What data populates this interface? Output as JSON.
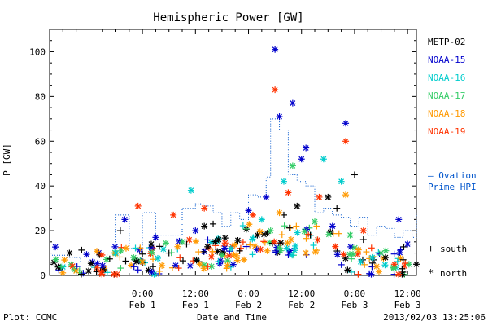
{
  "chart_data": {
    "type": "scatter",
    "title": "Hemispheric Power [GW]",
    "xlabel": "Date and Time",
    "ylabel": "P [GW]",
    "ylim": [
      0,
      110
    ],
    "xlim_hours": [
      -21,
      62
    ],
    "y_ticks": [
      0,
      20,
      40,
      60,
      80,
      100
    ],
    "x_ticks": [
      {
        "hour": 0,
        "time": "0:00",
        "date": "Feb 1"
      },
      {
        "hour": 12,
        "time": "12:00",
        "date": "Feb 1"
      },
      {
        "hour": 24,
        "time": "0:00",
        "date": "Feb 2"
      },
      {
        "hour": 36,
        "time": "12:00",
        "date": "Feb 2"
      },
      {
        "hour": 48,
        "time": "0:00",
        "date": "Feb 3"
      },
      {
        "hour": 60,
        "time": "12:00",
        "date": "Feb 3"
      }
    ],
    "legend_placement": "right",
    "footer_left": "Plot: CCMC",
    "footer_right": "2013/02/03 13:25:06",
    "ovation_label": [
      "— Ovation",
      "Prime HPI"
    ],
    "marker_legend": [
      {
        "symbol": "+",
        "label": "south"
      },
      {
        "symbol": "*",
        "label": "north"
      }
    ],
    "series": [
      {
        "name": "METP-02",
        "color": "#000000",
        "points": [
          {
            "x": -5,
            "y": 20,
            "m": "+"
          },
          {
            "x": 2,
            "y": 14,
            "m": "*"
          },
          {
            "x": 6,
            "y": 10,
            "m": "+"
          },
          {
            "x": 10,
            "y": 14,
            "m": "+"
          },
          {
            "x": 14,
            "y": 22,
            "m": "*"
          },
          {
            "x": 16,
            "y": 23,
            "m": "+"
          },
          {
            "x": 22,
            "y": 11,
            "m": "+"
          },
          {
            "x": 26,
            "y": 18,
            "m": "*"
          },
          {
            "x": 32,
            "y": 27,
            "m": "+"
          },
          {
            "x": 35,
            "y": 31,
            "m": "*"
          },
          {
            "x": 38,
            "y": 18,
            "m": "+"
          },
          {
            "x": 42,
            "y": 35,
            "m": "*"
          },
          {
            "x": 44,
            "y": 30,
            "m": "+"
          },
          {
            "x": 48,
            "y": 45,
            "m": "+"
          },
          {
            "x": 50,
            "y": 16,
            "m": "+"
          },
          {
            "x": 55,
            "y": 8,
            "m": "*"
          },
          {
            "x": 59,
            "y": 7,
            "m": "+"
          },
          {
            "x": 62,
            "y": 5,
            "m": "*"
          }
        ]
      },
      {
        "name": "NOAA-15",
        "color": "#0000cc",
        "points": [
          {
            "x": -4,
            "y": 25,
            "m": "*"
          },
          {
            "x": 3,
            "y": 17,
            "m": "*"
          },
          {
            "x": 12,
            "y": 20,
            "m": "*"
          },
          {
            "x": 24,
            "y": 29,
            "m": "*"
          },
          {
            "x": 28,
            "y": 35,
            "m": "*"
          },
          {
            "x": 30,
            "y": 101,
            "m": "*"
          },
          {
            "x": 31,
            "y": 71,
            "m": "*"
          },
          {
            "x": 34,
            "y": 77,
            "m": "*"
          },
          {
            "x": 36,
            "y": 52,
            "m": "*"
          },
          {
            "x": 37,
            "y": 57,
            "m": "*"
          },
          {
            "x": 43,
            "y": 22,
            "m": "*"
          },
          {
            "x": 46,
            "y": 68,
            "m": "*"
          },
          {
            "x": 58,
            "y": 25,
            "m": "*"
          },
          {
            "x": 60,
            "y": 14,
            "m": "*"
          }
        ]
      },
      {
        "name": "NOAA-16",
        "color": "#00cccc",
        "points": [
          {
            "x": -6,
            "y": 10,
            "m": "*"
          },
          {
            "x": 11,
            "y": 38,
            "m": "*"
          },
          {
            "x": 20,
            "y": 12,
            "m": "*"
          },
          {
            "x": 27,
            "y": 25,
            "m": "*"
          },
          {
            "x": 32,
            "y": 42,
            "m": "*"
          },
          {
            "x": 41,
            "y": 52,
            "m": "*"
          },
          {
            "x": 45,
            "y": 42,
            "m": "*"
          },
          {
            "x": 52,
            "y": 8,
            "m": "*"
          }
        ]
      },
      {
        "name": "NOAA-17",
        "color": "#33cc66",
        "points": [
          {
            "x": -2,
            "y": 8,
            "m": "*"
          },
          {
            "x": 9,
            "y": 15,
            "m": "*"
          },
          {
            "x": 18,
            "y": 9,
            "m": "*"
          },
          {
            "x": 29,
            "y": 20,
            "m": "*"
          },
          {
            "x": 34,
            "y": 49,
            "m": "*"
          },
          {
            "x": 39,
            "y": 24,
            "m": "*"
          },
          {
            "x": 47,
            "y": 18,
            "m": "*"
          },
          {
            "x": 54,
            "y": 10,
            "m": "*"
          }
        ]
      },
      {
        "name": "NOAA-18",
        "color": "#ff9900",
        "points": [
          {
            "x": -15,
            "y": 2,
            "m": "*"
          },
          {
            "x": 0,
            "y": 6,
            "m": "*"
          },
          {
            "x": 13,
            "y": 5,
            "m": "*"
          },
          {
            "x": 23,
            "y": 7,
            "m": "*"
          },
          {
            "x": 31,
            "y": 28,
            "m": "*"
          },
          {
            "x": 37,
            "y": 10,
            "m": "*"
          },
          {
            "x": 46,
            "y": 36,
            "m": "*"
          },
          {
            "x": 53,
            "y": 4,
            "m": "*"
          }
        ]
      },
      {
        "name": "NOAA-19",
        "color": "#ff3300",
        "points": [
          {
            "x": -1,
            "y": 31,
            "m": "*"
          },
          {
            "x": 7,
            "y": 27,
            "m": "*"
          },
          {
            "x": 14,
            "y": 30,
            "m": "*"
          },
          {
            "x": 25,
            "y": 27,
            "m": "*"
          },
          {
            "x": 30,
            "y": 83,
            "m": "*"
          },
          {
            "x": 33,
            "y": 37,
            "m": "*"
          },
          {
            "x": 40,
            "y": 35,
            "m": "*"
          },
          {
            "x": 46,
            "y": 60,
            "m": "*"
          },
          {
            "x": 50,
            "y": 20,
            "m": "*"
          },
          {
            "x": 57,
            "y": 5,
            "m": "*"
          }
        ]
      }
    ],
    "ovation_hpi": {
      "name": "Ovation Prime HPI",
      "color": "#0055cc",
      "points": [
        [
          -21,
          9
        ],
        [
          -17,
          8
        ],
        [
          -14,
          6
        ],
        [
          -10,
          6
        ],
        [
          -8,
          10
        ],
        [
          -6,
          27
        ],
        [
          -3,
          12
        ],
        [
          0,
          28
        ],
        [
          3,
          18
        ],
        [
          6,
          18
        ],
        [
          9,
          30
        ],
        [
          12,
          32
        ],
        [
          14,
          31
        ],
        [
          16,
          28
        ],
        [
          18,
          22
        ],
        [
          20,
          28
        ],
        [
          22,
          25
        ],
        [
          24,
          36
        ],
        [
          26,
          35
        ],
        [
          28,
          44
        ],
        [
          29,
          70
        ],
        [
          31,
          65
        ],
        [
          33,
          45
        ],
        [
          35,
          42
        ],
        [
          37,
          40
        ],
        [
          39,
          28
        ],
        [
          41,
          30
        ],
        [
          43,
          27
        ],
        [
          45,
          26
        ],
        [
          47,
          22
        ],
        [
          49,
          26
        ],
        [
          51,
          18
        ],
        [
          53,
          22
        ],
        [
          55,
          21
        ],
        [
          57,
          17
        ],
        [
          59,
          20
        ],
        [
          61,
          17
        ],
        [
          62,
          28
        ]
      ]
    }
  }
}
